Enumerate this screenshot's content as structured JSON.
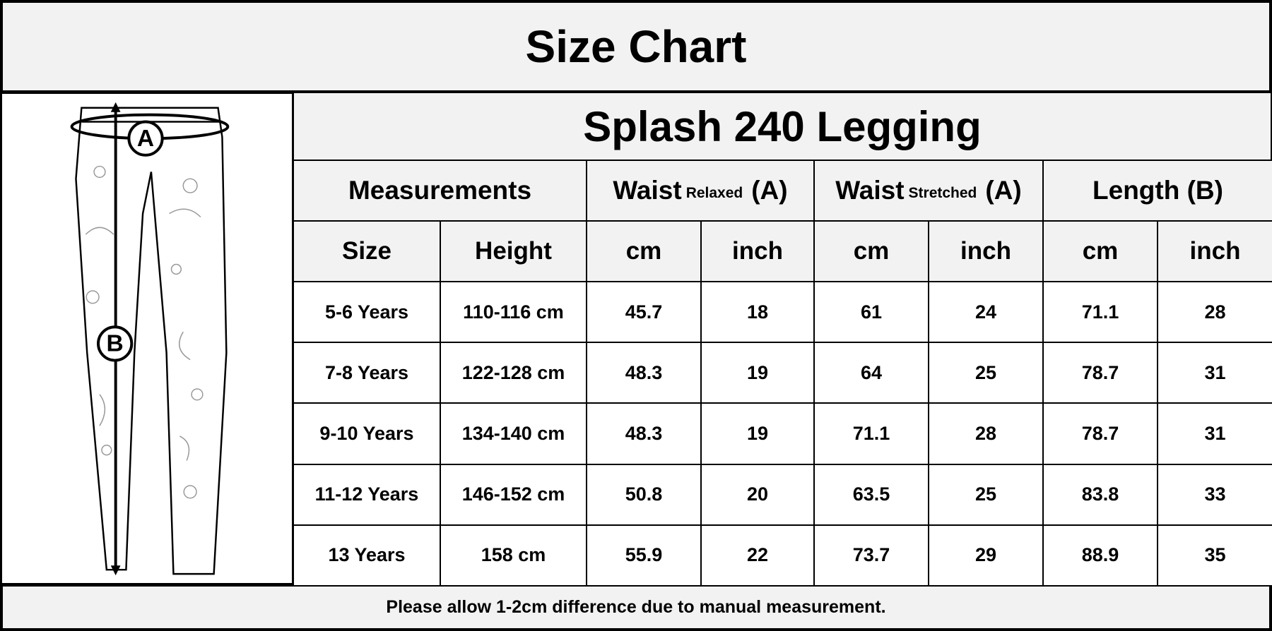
{
  "header": {
    "title": "Size Chart"
  },
  "diagram": {
    "labels": [
      "A",
      "B"
    ]
  },
  "table": {
    "product": "Splash 240 Legging",
    "groups": [
      {
        "label": "Measurements"
      },
      {
        "label": "Waist",
        "note": "Relaxed",
        "suffix": "(A)"
      },
      {
        "label": "Waist",
        "note": "Stretched",
        "suffix": "(A)"
      },
      {
        "label": "Length (B)"
      }
    ],
    "columns": [
      "Size",
      "Height",
      "cm",
      "inch",
      "cm",
      "inch",
      "cm",
      "inch"
    ],
    "rows": [
      [
        "5-6 Years",
        "110-116 cm",
        45.7,
        18,
        61,
        24,
        71.1,
        28
      ],
      [
        "7-8 Years",
        "122-128 cm",
        48.3,
        19,
        64,
        25,
        78.7,
        31
      ],
      [
        "9-10 Years",
        "134-140 cm",
        48.3,
        19,
        71.1,
        28,
        78.7,
        31
      ],
      [
        "11-12 Years",
        "146-152 cm",
        50.8,
        20,
        63.5,
        25,
        83.8,
        33
      ],
      [
        "13 Years",
        "158 cm",
        55.9,
        22,
        73.7,
        29,
        88.9,
        35
      ]
    ]
  },
  "footer": {
    "note": "Please allow 1-2cm difference due to manual measurement."
  }
}
